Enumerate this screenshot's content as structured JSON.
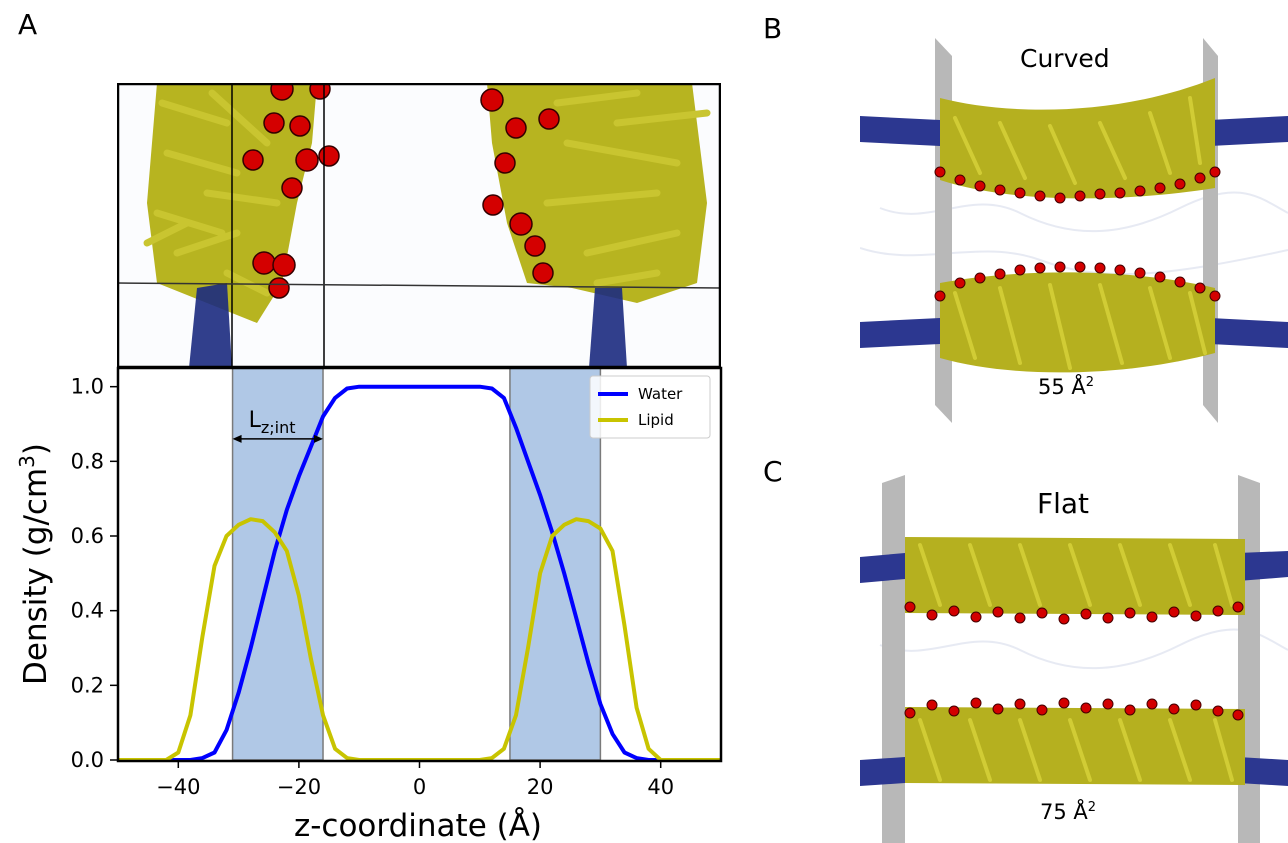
{
  "panels": {
    "a_label": "A",
    "b_label": "B",
    "c_label": "C",
    "b_title": "Curved",
    "b_area_value": "55 Å",
    "b_area_exp": "2",
    "c_title": "Flat",
    "c_area_value": "75 Å",
    "c_area_exp": "2"
  },
  "colors": {
    "water": "#0000ff",
    "lipid": "#c8c400",
    "interface_band": "#b0c8e6",
    "lipid_tail": "#c4bf2a",
    "headgroup": "#d40000",
    "water_surface": "#1e2a8a"
  },
  "chart_data": {
    "type": "line",
    "xlabel": "z-coordinate (Å)",
    "ylabel": "Density (g/cm",
    "ylabel_sup": "3",
    "ylabel_close": ")",
    "xlim": [
      -50,
      50
    ],
    "ylim": [
      0,
      1.05
    ],
    "xticks": [
      -40,
      -20,
      0,
      20,
      40
    ],
    "xtick_labels": [
      "−40",
      "−20",
      "0",
      "20",
      "40"
    ],
    "yticks": [
      0.0,
      0.2,
      0.4,
      0.6,
      0.8,
      1.0
    ],
    "ytick_labels": [
      "0.0",
      "0.2",
      "0.4",
      "0.6",
      "0.8",
      "1.0"
    ],
    "legend_position": "top-right",
    "shaded_regions": [
      [
        -31,
        -16
      ],
      [
        15,
        30
      ]
    ],
    "annotation": {
      "text": "L",
      "subscript": "z;int",
      "from": -31,
      "to": -16,
      "y": 0.86
    },
    "series": [
      {
        "name": "Water",
        "color": "#0000ff",
        "x": [
          -50,
          -38,
          -36,
          -34,
          -32,
          -30,
          -28,
          -26,
          -24,
          -22,
          -20,
          -18,
          -16,
          -14,
          -12,
          -10,
          -6,
          0,
          6,
          10,
          12,
          14,
          16,
          18,
          20,
          22,
          24,
          26,
          28,
          30,
          32,
          34,
          36,
          38,
          50
        ],
        "y": [
          0.0,
          0.0,
          0.005,
          0.02,
          0.08,
          0.18,
          0.3,
          0.43,
          0.56,
          0.67,
          0.76,
          0.84,
          0.92,
          0.97,
          0.995,
          1.0,
          1.0,
          1.0,
          1.0,
          1.0,
          0.995,
          0.97,
          0.89,
          0.8,
          0.71,
          0.61,
          0.5,
          0.38,
          0.26,
          0.15,
          0.07,
          0.02,
          0.005,
          0.0,
          0.0
        ]
      },
      {
        "name": "Lipid",
        "color": "#c8c400",
        "x": [
          -50,
          -42,
          -40,
          -38,
          -36,
          -34,
          -32,
          -30,
          -28,
          -26,
          -24,
          -22,
          -20,
          -18,
          -16,
          -14,
          -12,
          -10,
          0,
          10,
          12,
          14,
          16,
          18,
          20,
          22,
          24,
          26,
          28,
          30,
          32,
          34,
          36,
          38,
          40,
          50
        ],
        "y": [
          0.0,
          0.0,
          0.02,
          0.12,
          0.33,
          0.52,
          0.6,
          0.63,
          0.645,
          0.64,
          0.61,
          0.56,
          0.44,
          0.27,
          0.12,
          0.03,
          0.005,
          0.0,
          0.0,
          0.0,
          0.005,
          0.03,
          0.12,
          0.3,
          0.5,
          0.6,
          0.63,
          0.645,
          0.64,
          0.62,
          0.56,
          0.36,
          0.14,
          0.03,
          0.0,
          0.0
        ]
      }
    ]
  }
}
